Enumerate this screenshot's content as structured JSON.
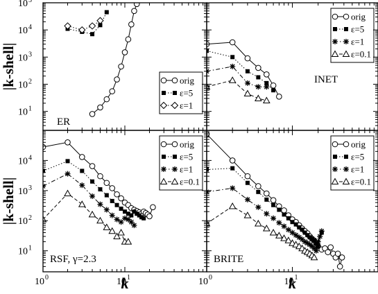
{
  "chart_data": {
    "type": "scatter",
    "layout": "2x2 shared axes",
    "x_scale": "log",
    "y_scale": "log",
    "xlim": [
      1,
      100
    ],
    "ylim": [
      2,
      100000
    ],
    "grid": false,
    "xlabel": "k",
    "ylabel": "|k-shell|",
    "x_ticks": [
      {
        "base": "10",
        "exp": "0",
        "value": 1
      },
      {
        "base": "10",
        "exp": "1",
        "value": 10
      }
    ],
    "y_ticks_top": [
      {
        "base": "10",
        "exp": "1",
        "value": 10
      },
      {
        "base": "10",
        "exp": "2",
        "value": 100
      },
      {
        "base": "10",
        "exp": "3",
        "value": 1000
      },
      {
        "base": "10",
        "exp": "4",
        "value": 10000
      },
      {
        "base": "10",
        "exp": "5",
        "value": 100000
      }
    ],
    "y_ticks_bottom": [
      {
        "base": "10",
        "exp": "1",
        "value": 10
      },
      {
        "base": "10",
        "exp": "2",
        "value": 100
      },
      {
        "base": "10",
        "exp": "3",
        "value": 1000
      },
      {
        "base": "10",
        "exp": "4",
        "value": 10000
      }
    ],
    "panels": [
      {
        "label": "ER",
        "legend_position": "center-right",
        "series": [
          {
            "name": "orig",
            "marker": "circle",
            "line": "solid",
            "x": [
              4,
              5,
              6,
              7,
              8,
              9,
              10,
              11,
              12,
              13,
              14
            ],
            "y": [
              8,
              14,
              28,
              55,
              150,
              450,
              1500,
              4500,
              16000,
              50000,
              90000
            ]
          },
          {
            "name": "ε=5",
            "marker": "square",
            "line": "dotted",
            "x": [
              2,
              3,
              4,
              5,
              6
            ],
            "y": [
              11000,
              8500,
              7000,
              15000,
              45000
            ]
          },
          {
            "name": "ε=1",
            "marker": "diamond",
            "line": "dotted",
            "x": [
              2,
              3,
              4,
              5
            ],
            "y": [
              14000,
              10000,
              14000,
              22000
            ]
          }
        ]
      },
      {
        "label": "INET",
        "legend_position": "top-right",
        "series": [
          {
            "name": "orig",
            "marker": "circle",
            "line": "solid",
            "x": [
              1,
              2,
              3,
              4,
              5,
              6,
              7
            ],
            "y": [
              3000,
              3500,
              900,
              400,
              230,
              90,
              35
            ]
          },
          {
            "name": "ε=5",
            "marker": "square",
            "line": "dotted",
            "x": [
              1,
              2,
              3,
              4,
              5,
              6
            ],
            "y": [
              1700,
              1000,
              300,
              180,
              110,
              60
            ]
          },
          {
            "name": "ε=1",
            "marker": "star",
            "line": "dash-dot",
            "x": [
              1,
              2,
              3,
              4,
              5
            ],
            "y": [
              300,
              450,
              110,
              80,
              80
            ]
          },
          {
            "name": "ε=0.1",
            "marker": "triangle",
            "line": "dashed",
            "x": [
              1,
              2,
              3,
              4,
              5
            ],
            "y": [
              80,
              140,
              45,
              30,
              25
            ]
          }
        ]
      },
      {
        "label": "RSF, γ=2.3",
        "legend_position": "top-right",
        "series": [
          {
            "name": "orig",
            "marker": "circle",
            "line": "solid",
            "x": [
              1,
              2,
              3,
              4,
              5,
              6,
              7,
              8,
              9,
              10,
              11,
              12,
              13,
              14,
              15,
              16,
              17,
              18,
              19,
              20,
              22
            ],
            "y": [
              28000,
              40000,
              13000,
              6500,
              3000,
              1800,
              1200,
              750,
              550,
              400,
              330,
              260,
              230,
              210,
              190,
              170,
              200,
              180,
              160,
              140,
              280
            ]
          },
          {
            "name": "ε=5",
            "marker": "square",
            "line": "dotted",
            "x": [
              1,
              2,
              3,
              4,
              5,
              6,
              7,
              8,
              9,
              10,
              11,
              12,
              13,
              14,
              15,
              16,
              17
            ],
            "y": [
              4500,
              9500,
              4500,
              2000,
              1100,
              700,
              450,
              330,
              250,
              200,
              170,
              150,
              200,
              170,
              150,
              130,
              120
            ]
          },
          {
            "name": "ε=1",
            "marker": "star",
            "line": "dash-dot",
            "x": [
              1,
              2,
              3,
              4,
              5,
              6,
              7,
              8,
              9,
              10,
              11,
              12,
              13
            ],
            "y": [
              1400,
              3600,
              1500,
              650,
              350,
              230,
              150,
              110,
              90,
              120,
              110,
              90,
              70
            ]
          },
          {
            "name": "ε=0.1",
            "marker": "triangle",
            "line": "dashed",
            "x": [
              1,
              2,
              3,
              4,
              5,
              6,
              7,
              8,
              9,
              10,
              11
            ],
            "y": [
              110,
              800,
              350,
              160,
              100,
              60,
              45,
              30,
              40,
              20,
              20
            ]
          }
        ]
      },
      {
        "label": "BRITE",
        "legend_position": "top-right",
        "series": [
          {
            "name": "orig",
            "marker": "circle",
            "line": "solid",
            "x": [
              1,
              2,
              3,
              4,
              5,
              6,
              7,
              8,
              9,
              10,
              11,
              12,
              13,
              14,
              15,
              16,
              17,
              18,
              19,
              20,
              22,
              24,
              26,
              28,
              30,
              32,
              34,
              36,
              38
            ],
            "y": [
              75000,
              10000,
              3000,
              1400,
              800,
              480,
              300,
              220,
              150,
              110,
              90,
              70,
              55,
              45,
              38,
              30,
              25,
              22,
              18,
              14,
              11,
              12,
              9,
              13,
              8,
              6,
              8,
              3,
              6
            ]
          },
          {
            "name": "ε=5",
            "marker": "square",
            "line": "dotted",
            "x": [
              1,
              2,
              3,
              4,
              5,
              6,
              7,
              8,
              9,
              10,
              11,
              12,
              13,
              14,
              15,
              16,
              17,
              18,
              19,
              20,
              22
            ],
            "y": [
              5000,
              5500,
              1800,
              900,
              500,
              330,
              230,
              160,
              120,
              90,
              75,
              60,
              50,
              40,
              33,
              28,
              25,
              22,
              18,
              14,
              40
            ]
          },
          {
            "name": "ε=1",
            "marker": "star",
            "line": "dash-dot",
            "x": [
              1,
              2,
              3,
              4,
              5,
              6,
              7,
              8,
              9,
              10,
              11,
              12,
              13,
              14,
              15,
              16,
              17,
              18,
              19,
              20,
              21,
              22
            ],
            "y": [
              900,
              1200,
              500,
              280,
              170,
              120,
              85,
              65,
              50,
              40,
              33,
              28,
              24,
              20,
              18,
              16,
              14,
              12,
              10,
              20,
              30,
              45
            ]
          },
          {
            "name": "ε=0.1",
            "marker": "triangle",
            "line": "dashed",
            "x": [
              1,
              2,
              3,
              4,
              5,
              6,
              7,
              8,
              9,
              10,
              11,
              12,
              13,
              14,
              15,
              16,
              17,
              18
            ],
            "y": [
              80,
              300,
              150,
              80,
              55,
              40,
              32,
              26,
              22,
              18,
              16,
              14,
              12,
              10,
              9,
              8,
              7,
              6
            ]
          }
        ]
      }
    ]
  }
}
